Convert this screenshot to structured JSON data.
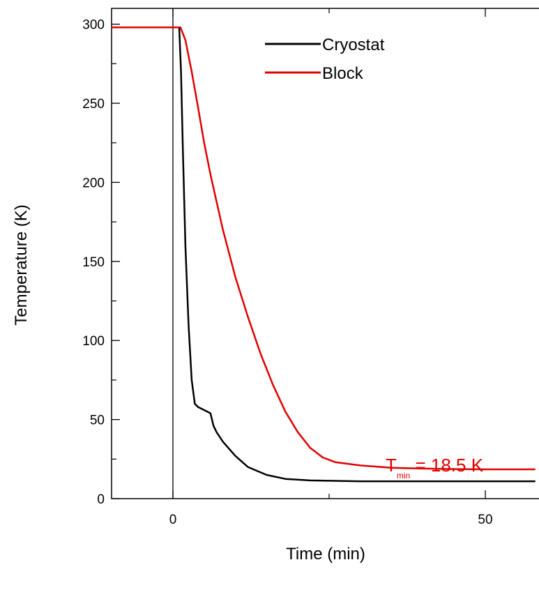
{
  "chart_data": {
    "type": "line",
    "title": "",
    "xlabel": "Time (min)",
    "ylabel": "Temperature (K)",
    "xlim": [
      -10,
      58
    ],
    "ylim": [
      0,
      310
    ],
    "x_ticks": [
      0,
      50
    ],
    "y_ticks": [
      0,
      50,
      100,
      150,
      200,
      250,
      300
    ],
    "x_minor_ticks": [
      25
    ],
    "y_minor_ticks": [
      25,
      75,
      125,
      175,
      225,
      275
    ],
    "grid": false,
    "vertical_line_x": 0,
    "legend": {
      "position": "top-center"
    },
    "series": [
      {
        "name": "Cryostat",
        "color": "#000000",
        "x": [
          -10,
          0,
          1,
          1.3,
          1.6,
          2,
          2.5,
          3,
          3.5,
          4,
          5,
          6,
          6.5,
          7,
          8,
          10,
          12,
          15,
          18,
          22,
          30,
          40,
          58
        ],
        "y": [
          298,
          298,
          298,
          270,
          220,
          160,
          110,
          75,
          60,
          58,
          56,
          54,
          46,
          42,
          36,
          27,
          20,
          15,
          12.5,
          11.5,
          11,
          11,
          11
        ]
      },
      {
        "name": "Block",
        "color": "#e00000",
        "x": [
          -10,
          0,
          1.2,
          2,
          3,
          4,
          5,
          6,
          8,
          10,
          12,
          14,
          16,
          18,
          20,
          22,
          24,
          26,
          30,
          35,
          40,
          45,
          50,
          58
        ],
        "y": [
          298,
          298,
          298,
          290,
          270,
          248,
          225,
          205,
          170,
          140,
          115,
          92,
          72,
          55,
          42,
          32,
          26,
          23,
          21,
          19.5,
          19,
          18.7,
          18.5,
          18.5
        ]
      }
    ],
    "annotation": {
      "text": "T",
      "subscript": "min",
      "value_text": " = 18.5 K",
      "color": "#e00000"
    }
  }
}
